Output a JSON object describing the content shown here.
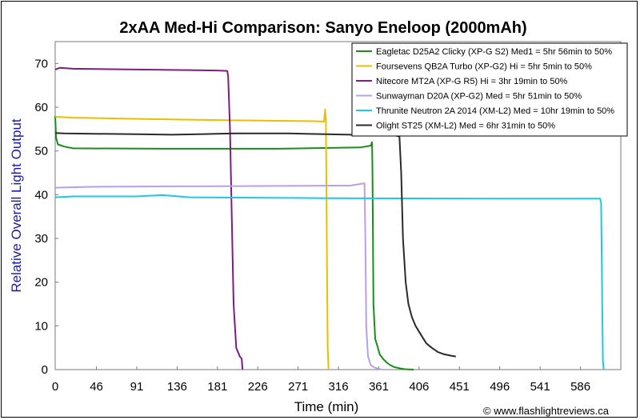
{
  "chart_data": {
    "type": "line",
    "title": "2xAA Med-Hi Comparison: Sanyo Eneloop (2000mAh)",
    "xlabel": "Time (min)",
    "ylabel": "Relative Overall Light Output",
    "xlim": [
      0,
      631
    ],
    "ylim": [
      0,
      75
    ],
    "x_ticks": [
      0,
      46,
      91,
      136,
      181,
      226,
      271,
      316,
      361,
      406,
      451,
      496,
      541,
      586
    ],
    "y_ticks": [
      0,
      10,
      20,
      30,
      40,
      50,
      60,
      70
    ],
    "grid": false,
    "legend_position": "top-right",
    "copyright": "© www.flashlightreviews.ca",
    "series": [
      {
        "name": "Eagletac D25A2 Clicky (XP-G S2) Med1 = 5hr 56min to 50%",
        "color": "#1a8c1a",
        "points": [
          [
            0,
            58
          ],
          [
            1,
            53
          ],
          [
            3,
            51.5
          ],
          [
            10,
            51
          ],
          [
            20,
            50.6
          ],
          [
            120,
            50.5
          ],
          [
            250,
            50.5
          ],
          [
            340,
            50.8
          ],
          [
            352,
            51.2
          ],
          [
            353.5,
            52
          ],
          [
            354,
            45
          ],
          [
            355,
            15
          ],
          [
            357,
            7
          ],
          [
            360,
            5
          ],
          [
            362,
            3.5
          ],
          [
            366,
            2.4
          ],
          [
            370,
            1.6
          ],
          [
            374,
            1.0
          ],
          [
            378,
            0.6
          ],
          [
            384,
            0.3
          ],
          [
            390,
            0.1
          ],
          [
            400,
            0
          ]
        ]
      },
      {
        "name": "Foursevens QB2A Turbo (XP-G2) Hi = 5hr 5min to 50%",
        "color": "#e8c000",
        "points": [
          [
            0,
            57.8
          ],
          [
            20,
            57.6
          ],
          [
            100,
            57.3
          ],
          [
            200,
            57
          ],
          [
            290,
            56.8
          ],
          [
            300,
            56.7
          ],
          [
            301,
            59.5
          ],
          [
            302,
            57
          ],
          [
            303,
            30
          ],
          [
            304,
            5
          ],
          [
            305,
            0
          ]
        ]
      },
      {
        "name": "Nitecore MT2A (XP-G R5) Hi = 3hr 19min to 50%",
        "color": "#7b1e7e",
        "points": [
          [
            0,
            68.6
          ],
          [
            5,
            69
          ],
          [
            20,
            68.8
          ],
          [
            100,
            68.6
          ],
          [
            180,
            68.4
          ],
          [
            192,
            68.3
          ],
          [
            193,
            67
          ],
          [
            195,
            55
          ],
          [
            197,
            35
          ],
          [
            199,
            15
          ],
          [
            202,
            5
          ],
          [
            206,
            3
          ],
          [
            208,
            2.5
          ],
          [
            209,
            0
          ]
        ]
      },
      {
        "name": "Sunwayman D20A (XP-G2) Med = 5hr 51min to 50%",
        "color": "#b8a0e8",
        "points": [
          [
            0,
            41.6
          ],
          [
            40,
            41.8
          ],
          [
            150,
            41.9
          ],
          [
            250,
            42
          ],
          [
            330,
            42.1
          ],
          [
            345,
            42.6
          ],
          [
            346,
            30
          ],
          [
            347,
            10
          ],
          [
            349,
            3
          ],
          [
            352,
            1
          ],
          [
            356,
            0.5
          ],
          [
            364,
            0
          ]
        ]
      },
      {
        "name": "Thrunite Neutron 2A 2014 (XM-L2) Med = 10hr 19min to 50%",
        "color": "#1ec8e0",
        "points": [
          [
            0,
            39.4
          ],
          [
            20,
            39.6
          ],
          [
            90,
            39.6
          ],
          [
            120,
            39.9
          ],
          [
            150,
            39.4
          ],
          [
            300,
            39.2
          ],
          [
            500,
            39.1
          ],
          [
            608,
            39.1
          ],
          [
            609,
            38
          ],
          [
            610,
            20
          ],
          [
            611,
            2
          ],
          [
            612,
            0
          ]
        ]
      },
      {
        "name": "Olight ST25 (XM-L2) Med = 6hr 31min to 50%",
        "color": "#2a2a2a",
        "points": [
          [
            0,
            54.1
          ],
          [
            10,
            54
          ],
          [
            100,
            53.8
          ],
          [
            130,
            53.7
          ],
          [
            200,
            54
          ],
          [
            260,
            54
          ],
          [
            330,
            53.7
          ],
          [
            380,
            53.5
          ],
          [
            384,
            53.3
          ],
          [
            386,
            45
          ],
          [
            388,
            30
          ],
          [
            391,
            20
          ],
          [
            394,
            15
          ],
          [
            398,
            12
          ],
          [
            402,
            10
          ],
          [
            408,
            8
          ],
          [
            414,
            6
          ],
          [
            420,
            5
          ],
          [
            427,
            4
          ],
          [
            434,
            3.5
          ],
          [
            441,
            3.2
          ],
          [
            447,
            3
          ]
        ]
      }
    ]
  }
}
